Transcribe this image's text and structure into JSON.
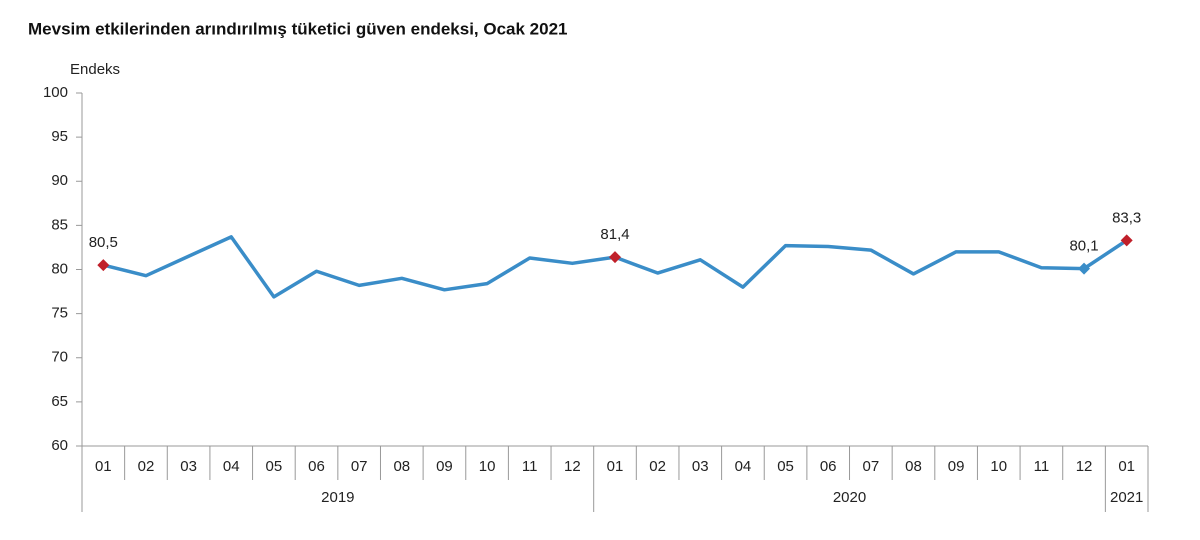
{
  "chart_data": {
    "type": "line",
    "title": "Mevsim etkilerinden arındırılmış tüketici güven endeksi, Ocak 2021",
    "y_label": "Endeks",
    "category_groups": [
      {
        "label": "2019",
        "categories": [
          "01",
          "02",
          "03",
          "04",
          "05",
          "06",
          "07",
          "08",
          "09",
          "10",
          "11",
          "12"
        ]
      },
      {
        "label": "2020",
        "categories": [
          "01",
          "02",
          "03",
          "04",
          "05",
          "06",
          "07",
          "08",
          "09",
          "10",
          "11",
          "12"
        ]
      },
      {
        "label": "2021",
        "categories": [
          "01"
        ]
      }
    ],
    "series": [
      {
        "name": "Endeks",
        "color": "#3a8dc8",
        "values": [
          80.5,
          79.3,
          81.5,
          83.7,
          76.9,
          79.8,
          78.2,
          79.0,
          77.7,
          78.4,
          81.3,
          80.7,
          81.4,
          79.6,
          81.1,
          78.0,
          82.7,
          82.6,
          82.2,
          79.5,
          82.0,
          82.0,
          80.2,
          80.1,
          83.3
        ],
        "value_labels": [
          "80,5",
          null,
          null,
          null,
          null,
          null,
          null,
          null,
          null,
          null,
          null,
          null,
          "81,4",
          null,
          null,
          null,
          null,
          null,
          null,
          null,
          null,
          null,
          null,
          "80,1",
          "83,3"
        ],
        "marker_colors": [
          "#c0202a",
          null,
          null,
          null,
          null,
          null,
          null,
          null,
          null,
          null,
          null,
          null,
          "#c0202a",
          null,
          null,
          null,
          null,
          null,
          null,
          null,
          null,
          null,
          null,
          "#3a8dc8",
          "#c0202a"
        ]
      }
    ],
    "ylim": [
      60,
      100
    ],
    "yticks": [
      60,
      65,
      70,
      75,
      80,
      85,
      90,
      95,
      100
    ],
    "grid": false
  }
}
